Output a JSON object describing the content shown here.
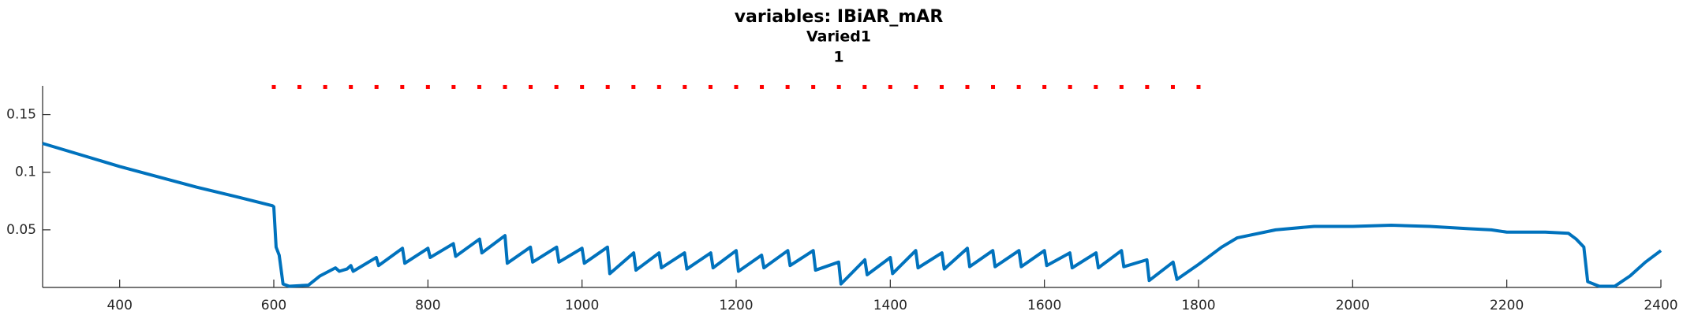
{
  "chart_data": {
    "type": "line",
    "title": "variables: IBiAR_mAR",
    "subtitle": "Varied1",
    "subtitle2": "1",
    "xlim": [
      300,
      2400
    ],
    "ylim": [
      0,
      0.175
    ],
    "xticks": [
      400,
      600,
      800,
      1000,
      1200,
      1400,
      1600,
      1800,
      2000,
      2200,
      2400
    ],
    "yticks": [
      0.05,
      0.1,
      0.15
    ],
    "grid": false,
    "series": [
      {
        "color": "#0072bd",
        "style": "line",
        "x": [
          300,
          350,
          400,
          450,
          500,
          550,
          598,
          600,
          603,
          607,
          612,
          620,
          645,
          660,
          680,
          685,
          695,
          700,
          703,
          733,
          736,
          767,
          770,
          800,
          803,
          833,
          836,
          867,
          870,
          900,
          903,
          933,
          936,
          967,
          970,
          1000,
          1003,
          1033,
          1036,
          1067,
          1070,
          1100,
          1103,
          1133,
          1136,
          1167,
          1170,
          1200,
          1203,
          1233,
          1236,
          1267,
          1270,
          1300,
          1303,
          1333,
          1336,
          1367,
          1370,
          1400,
          1403,
          1433,
          1436,
          1467,
          1470,
          1500,
          1503,
          1533,
          1536,
          1567,
          1570,
          1600,
          1603,
          1633,
          1636,
          1667,
          1670,
          1700,
          1703,
          1733,
          1736,
          1767,
          1772,
          1800,
          1830,
          1850,
          1900,
          1950,
          2000,
          2050,
          2100,
          2150,
          2180,
          2200,
          2250,
          2280,
          2290,
          2300,
          2305,
          2320,
          2340,
          2360,
          2380,
          2400
        ],
        "values": [
          0.125,
          0.115,
          0.105,
          0.096,
          0.087,
          0.079,
          0.071,
          0.07,
          0.035,
          0.028,
          0.003,
          0.001,
          0.002,
          0.01,
          0.017,
          0.014,
          0.016,
          0.019,
          0.014,
          0.026,
          0.019,
          0.034,
          0.021,
          0.034,
          0.026,
          0.038,
          0.027,
          0.042,
          0.03,
          0.045,
          0.021,
          0.035,
          0.022,
          0.035,
          0.022,
          0.034,
          0.021,
          0.035,
          0.012,
          0.03,
          0.015,
          0.03,
          0.017,
          0.03,
          0.016,
          0.03,
          0.017,
          0.032,
          0.014,
          0.028,
          0.017,
          0.032,
          0.019,
          0.032,
          0.015,
          0.022,
          0.003,
          0.024,
          0.011,
          0.026,
          0.012,
          0.032,
          0.017,
          0.03,
          0.016,
          0.034,
          0.018,
          0.032,
          0.018,
          0.032,
          0.018,
          0.032,
          0.019,
          0.03,
          0.017,
          0.03,
          0.017,
          0.032,
          0.018,
          0.024,
          0.006,
          0.022,
          0.007,
          0.02,
          0.035,
          0.043,
          0.05,
          0.053,
          0.053,
          0.054,
          0.053,
          0.051,
          0.05,
          0.048,
          0.048,
          0.047,
          0.042,
          0.035,
          0.005,
          0.001,
          0.001,
          0.01,
          0.022,
          0.032
        ]
      },
      {
        "color": "#ff0000",
        "style": "dots",
        "x": [
          600,
          633.3,
          666.7,
          700,
          733.3,
          766.7,
          800,
          833.3,
          866.7,
          900,
          933.3,
          966.7,
          1000,
          1033.3,
          1066.7,
          1100,
          1133.3,
          1166.7,
          1200,
          1233.3,
          1266.7,
          1300,
          1333.3,
          1366.7,
          1400,
          1433.3,
          1466.7,
          1500,
          1533.3,
          1566.7,
          1600,
          1633.3,
          1666.7,
          1700,
          1733.3,
          1766.7,
          1800
        ],
        "values": [
          0.174,
          0.174,
          0.174,
          0.174,
          0.174,
          0.174,
          0.174,
          0.174,
          0.174,
          0.174,
          0.174,
          0.174,
          0.174,
          0.174,
          0.174,
          0.174,
          0.174,
          0.174,
          0.174,
          0.174,
          0.174,
          0.174,
          0.174,
          0.174,
          0.174,
          0.174,
          0.174,
          0.174,
          0.174,
          0.174,
          0.174,
          0.174,
          0.174,
          0.174,
          0.174,
          0.174,
          0.174
        ]
      }
    ]
  }
}
